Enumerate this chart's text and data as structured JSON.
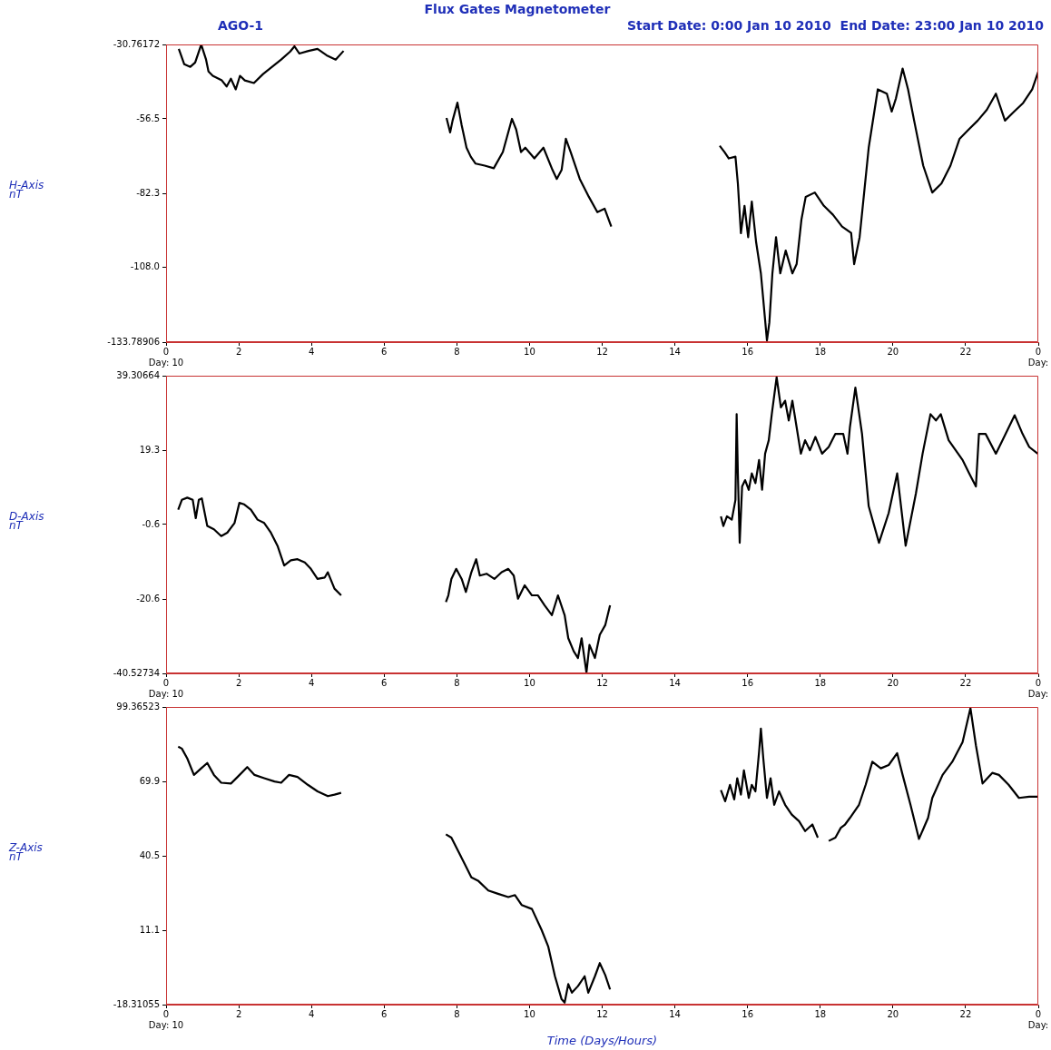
{
  "chart_data": [
    {
      "type": "line",
      "title": "Flux Gates Magnetometer",
      "subtitle": "Start Date: 0:00 Jan 10 2010  End Date: 23:00 Jan 10 2010",
      "annotations": [
        "AGO-1"
      ],
      "ylabel": "H-Axis\nnT",
      "color": "#000000",
      "marker": "none",
      "line_style": "solid",
      "grid": false,
      "legend": false,
      "xlim": [
        "2010-01-10T00:00",
        "2010-01-11T00:00"
      ],
      "xticks": [
        {
          "value": "2010-01-10T00:00",
          "label": "0\nDay: 10"
        },
        {
          "value": "2010-01-10T02:00",
          "label": "2"
        },
        {
          "value": "2010-01-10T04:00",
          "label": "4"
        },
        {
          "value": "2010-01-10T06:00",
          "label": "6"
        },
        {
          "value": "2010-01-10T08:00",
          "label": "8"
        },
        {
          "value": "2010-01-10T10:00",
          "label": "10"
        },
        {
          "value": "2010-01-10T12:00",
          "label": "12"
        },
        {
          "value": "2010-01-10T14:00",
          "label": "14"
        },
        {
          "value": "2010-01-10T16:00",
          "label": "16"
        },
        {
          "value": "2010-01-10T18:00",
          "label": "18"
        },
        {
          "value": "2010-01-10T20:00",
          "label": "20"
        },
        {
          "value": "2010-01-10T22:00",
          "label": "22"
        },
        {
          "value": "2010-01-11T00:00",
          "label": "0\nDay:"
        }
      ],
      "ylim": [
        -133.78906,
        -30.76172
      ],
      "yticks": [
        -133.78906,
        {
          "value": -108,
          "label": "-108.0"
        },
        -82.3,
        -56.5,
        -30.76172
      ],
      "x": [
        "2010-01-10T00:21",
        "2010-01-10T00:30",
        "2010-01-10T00:40",
        "2010-01-10T00:48",
        "2010-01-10T00:58",
        "2010-01-10T01:06",
        "2010-01-10T01:10",
        "2010-01-10T01:17",
        "2010-01-10T01:32",
        "2010-01-10T01:40",
        "2010-01-10T01:47",
        "2010-01-10T01:55",
        "2010-01-10T02:02",
        "2010-01-10T02:10",
        "2010-01-10T02:25",
        "2010-01-10T02:40",
        "2010-01-10T02:55",
        "2010-01-10T03:10",
        "2010-01-10T03:25",
        "2010-01-10T03:32",
        "2010-01-10T03:40",
        "2010-01-10T03:55",
        "2010-01-10T04:10",
        "2010-01-10T04:25",
        "2010-01-10T04:40",
        "2010-01-10T04:53",
        "2010-01-10T06:18",
        "2010-01-10T07:43",
        "2010-01-10T07:49",
        "2010-01-10T07:53",
        "2010-01-10T08:01",
        "2010-01-10T08:08",
        "2010-01-10T08:16",
        "2010-01-10T08:23",
        "2010-01-10T08:31",
        "2010-01-10T08:46",
        "2010-01-10T09:01",
        "2010-01-10T09:16",
        "2010-01-10T09:31",
        "2010-01-10T09:38",
        "2010-01-10T09:46",
        "2010-01-10T09:53",
        "2010-01-10T10:08",
        "2010-01-10T10:23",
        "2010-01-10T10:38",
        "2010-01-10T10:45",
        "2010-01-10T10:53",
        "2010-01-10T11:00",
        "2010-01-10T11:08",
        "2010-01-10T11:23",
        "2010-01-10T11:38",
        "2010-01-10T11:52",
        "2010-01-10T12:04",
        "2010-01-10T12:15",
        "2010-01-10T13:42",
        "2010-01-10T15:14",
        "2010-01-10T15:22",
        "2010-01-10T15:29",
        "2010-01-10T15:40",
        "2010-01-10T15:44",
        "2010-01-10T15:49",
        "2010-01-10T15:55",
        "2010-01-10T16:01",
        "2010-01-10T16:07",
        "2010-01-10T16:14",
        "2010-01-10T16:22",
        "2010-01-10T16:26",
        "2010-01-10T16:32",
        "2010-01-10T16:36",
        "2010-01-10T16:41",
        "2010-01-10T16:47",
        "2010-01-10T16:54",
        "2010-01-10T17:03",
        "2010-01-10T17:14",
        "2010-01-10T17:21",
        "2010-01-10T17:29",
        "2010-01-10T17:36",
        "2010-01-10T17:51",
        "2010-01-10T18:06",
        "2010-01-10T18:21",
        "2010-01-10T18:36",
        "2010-01-10T18:51",
        "2010-01-10T18:56",
        "2010-01-10T19:05",
        "2010-01-10T19:20",
        "2010-01-10T19:35",
        "2010-01-10T19:50",
        "2010-01-10T19:58",
        "2010-01-10T20:05",
        "2010-01-10T20:16",
        "2010-01-10T20:25",
        "2010-01-10T20:35",
        "2010-01-10T20:50",
        "2010-01-10T21:05",
        "2010-01-10T21:20",
        "2010-01-10T21:35",
        "2010-01-10T21:50",
        "2010-01-10T22:05",
        "2010-01-10T22:20",
        "2010-01-10T22:35",
        "2010-01-10T22:50",
        "2010-01-10T23:05",
        "2010-01-10T23:20",
        "2010-01-10T23:35",
        "2010-01-10T23:50",
        "2010-01-11T00:00"
      ],
      "values": [
        -32.3,
        -37.6,
        -38.5,
        -37.0,
        -30.8,
        -36.0,
        -40.1,
        -41.6,
        -43.2,
        -45.3,
        -42.6,
        -46.3,
        -41.6,
        -43.2,
        -44.1,
        -41.0,
        -38.5,
        -36.0,
        -33.2,
        -31.4,
        -33.9,
        -33.0,
        -32.3,
        -34.5,
        -36.0,
        -33.0,
        null,
        -56.2,
        -61.2,
        -57.1,
        -50.9,
        -58.7,
        -66.5,
        -69.6,
        -72.0,
        -72.7,
        -73.6,
        -68.0,
        -56.5,
        -60.2,
        -68.0,
        -66.5,
        -70.2,
        -66.5,
        -74.2,
        -77.3,
        -74.2,
        -63.4,
        -68.0,
        -77.3,
        -83.5,
        -88.8,
        -87.6,
        -93.8,
        null,
        -65.8,
        -68.0,
        -70.2,
        -69.6,
        -78.9,
        -96.1,
        -86.6,
        -97.5,
        -85.1,
        -99.0,
        -110.0,
        -119.2,
        -133.2,
        -127.0,
        -110.0,
        -97.5,
        -110.0,
        -102.1,
        -110.0,
        -106.8,
        -91.3,
        -83.5,
        -82.0,
        -86.6,
        -89.7,
        -93.8,
        -96.0,
        -106.8,
        -97.5,
        -66.5,
        -46.3,
        -47.8,
        -54.0,
        -49.4,
        -39.1,
        -46.3,
        -57.1,
        -72.7,
        -82.0,
        -78.9,
        -72.7,
        -63.4,
        -60.2,
        -57.1,
        -53.4,
        -47.8,
        -57.1,
        -54.0,
        -51.0,
        -46.3,
        -40.1
      ]
    },
    {
      "type": "line",
      "ylabel": "D-Axis\nnT",
      "color": "#000000",
      "marker": "none",
      "line_style": "solid",
      "grid": false,
      "legend": false,
      "xlim": [
        "2010-01-10T00:00",
        "2010-01-11T00:00"
      ],
      "xticks": [
        {
          "value": "2010-01-10T00:00",
          "label": "0\nDay: 10"
        },
        {
          "value": "2010-01-10T02:00",
          "label": "2"
        },
        {
          "value": "2010-01-10T04:00",
          "label": "4"
        },
        {
          "value": "2010-01-10T06:00",
          "label": "6"
        },
        {
          "value": "2010-01-10T08:00",
          "label": "8"
        },
        {
          "value": "2010-01-10T10:00",
          "label": "10"
        },
        {
          "value": "2010-01-10T12:00",
          "label": "12"
        },
        {
          "value": "2010-01-10T14:00",
          "label": "14"
        },
        {
          "value": "2010-01-10T16:00",
          "label": "16"
        },
        {
          "value": "2010-01-10T18:00",
          "label": "18"
        },
        {
          "value": "2010-01-10T20:00",
          "label": "20"
        },
        {
          "value": "2010-01-10T22:00",
          "label": "22"
        },
        {
          "value": "2010-01-11T00:00",
          "label": "0\nDay:"
        }
      ],
      "ylim": [
        -40.52734,
        39.30664
      ],
      "yticks": [
        -40.52734,
        -20.6,
        -0.6,
        19.3,
        39.30664
      ],
      "x": [
        "2010-01-10T00:20",
        "2010-01-10T00:26",
        "2010-01-10T00:35",
        "2010-01-10T00:44",
        "2010-01-10T00:49",
        "2010-01-10T00:54",
        "2010-01-10T00:59",
        "2010-01-10T01:08",
        "2010-01-10T01:19",
        "2010-01-10T01:31",
        "2010-01-10T01:41",
        "2010-01-10T01:53",
        "2010-01-10T02:01",
        "2010-01-10T02:09",
        "2010-01-10T02:20",
        "2010-01-10T02:31",
        "2010-01-10T02:42",
        "2010-01-10T02:53",
        "2010-01-10T03:04",
        "2010-01-10T03:15",
        "2010-01-10T03:26",
        "2010-01-10T03:37",
        "2010-01-10T03:49",
        "2010-01-10T03:59",
        "2010-01-10T04:10",
        "2010-01-10T04:22",
        "2010-01-10T04:27",
        "2010-01-10T04:38",
        "2010-01-10T04:49",
        "2010-01-10T06:18",
        "2010-01-10T07:42",
        "2010-01-10T07:46",
        "2010-01-10T07:51",
        "2010-01-10T07:59",
        "2010-01-10T08:08",
        "2010-01-10T08:15",
        "2010-01-10T08:24",
        "2010-01-10T08:32",
        "2010-01-10T08:38",
        "2010-01-10T08:49",
        "2010-01-10T09:02",
        "2010-01-10T09:14",
        "2010-01-10T09:25",
        "2010-01-10T09:34",
        "2010-01-10T09:41",
        "2010-01-10T09:52",
        "2010-01-10T10:04",
        "2010-01-10T10:14",
        "2010-01-10T10:25",
        "2010-01-10T10:37",
        "2010-01-10T10:47",
        "2010-01-10T10:58",
        "2010-01-10T11:04",
        "2010-01-10T11:13",
        "2010-01-10T11:20",
        "2010-01-10T11:26",
        "2010-01-10T11:34",
        "2010-01-10T11:39",
        "2010-01-10T11:48",
        "2010-01-10T11:56",
        "2010-01-10T12:05",
        "2010-01-10T12:13",
        "2010-01-10T13:42",
        "2010-01-10T15:16",
        "2010-01-10T15:20",
        "2010-01-10T15:26",
        "2010-01-10T15:34",
        "2010-01-10T15:40",
        "2010-01-10T15:42",
        "2010-01-10T15:44",
        "2010-01-10T15:47",
        "2010-01-10T15:51",
        "2010-01-10T15:56",
        "2010-01-10T16:02",
        "2010-01-10T16:07",
        "2010-01-10T16:13",
        "2010-01-10T16:19",
        "2010-01-10T16:24",
        "2010-01-10T16:29",
        "2010-01-10T16:35",
        "2010-01-10T16:40",
        "2010-01-10T16:48",
        "2010-01-10T16:55",
        "2010-01-10T17:02",
        "2010-01-10T17:08",
        "2010-01-10T17:14",
        "2010-01-10T17:21",
        "2010-01-10T17:28",
        "2010-01-10T17:35",
        "2010-01-10T17:43",
        "2010-01-10T17:52",
        "2010-01-10T18:03",
        "2010-01-10T18:14",
        "2010-01-10T18:25",
        "2010-01-10T18:38",
        "2010-01-10T18:45",
        "2010-01-10T18:49",
        "2010-01-10T18:58",
        "2010-01-10T19:09",
        "2010-01-10T19:20",
        "2010-01-10T19:37",
        "2010-01-10T19:53",
        "2010-01-10T20:07",
        "2010-01-10T20:21",
        "2010-01-10T20:38",
        "2010-01-10T20:49",
        "2010-01-10T21:02",
        "2010-01-10T21:11",
        "2010-01-10T21:19",
        "2010-01-10T21:32",
        "2010-01-10T21:55",
        "2010-01-10T22:06",
        "2010-01-10T22:17",
        "2010-01-10T22:22",
        "2010-01-10T22:33",
        "2010-01-10T22:50",
        "2010-01-10T23:01",
        "2010-01-10T23:21",
        "2010-01-10T23:34",
        "2010-01-10T23:45",
        "2010-01-10T23:59"
      ],
      "values": [
        3.4,
        6.0,
        6.6,
        6.0,
        1.1,
        6.0,
        6.4,
        -1.0,
        -1.9,
        -3.7,
        -2.8,
        -0.2,
        5.2,
        4.8,
        3.4,
        0.7,
        -0.2,
        -2.8,
        -6.3,
        -11.6,
        -10.2,
        -9.9,
        -10.8,
        -12.5,
        -15.2,
        -14.8,
        -13.4,
        -17.8,
        -19.6,
        null,
        -21.4,
        -19.6,
        -15.2,
        -12.5,
        -15.2,
        -18.7,
        -13.4,
        -9.9,
        -14.3,
        -13.8,
        -15.2,
        -13.4,
        -12.5,
        -14.3,
        -20.5,
        -16.9,
        -19.6,
        -19.6,
        -22.3,
        -24.9,
        -19.6,
        -24.9,
        -31.1,
        -34.6,
        -36.4,
        -31.1,
        -40.3,
        -32.9,
        -36.4,
        -30.2,
        -27.6,
        -22.3,
        null,
        1.6,
        -1.0,
        1.6,
        0.7,
        6.0,
        29.0,
        13.1,
        -5.5,
        9.6,
        11.3,
        8.7,
        13.1,
        10.5,
        16.7,
        8.7,
        18.4,
        22.0,
        29.0,
        38.9,
        30.8,
        32.6,
        27.3,
        32.6,
        25.5,
        18.4,
        22.0,
        19.3,
        22.9,
        18.4,
        20.2,
        23.7,
        23.7,
        18.4,
        25.5,
        36.1,
        23.7,
        4.3,
        -5.5,
        2.5,
        13.1,
        -6.3,
        7.8,
        18.4,
        29.0,
        27.3,
        29.0,
        22.0,
        16.7,
        13.1,
        9.6,
        23.7,
        23.7,
        18.4,
        22.0,
        28.7,
        23.7,
        20.2,
        18.4
      ]
    },
    {
      "type": "line",
      "ylabel": "Z-Axis\nnT",
      "xlabel": "Time (Days/Hours)",
      "color": "#000000",
      "marker": "none",
      "line_style": "solid",
      "grid": false,
      "legend": false,
      "xlim": [
        "2010-01-10T00:00",
        "2010-01-11T00:00"
      ],
      "xticks": [
        {
          "value": "2010-01-10T00:00",
          "label": "0\nDay: 10"
        },
        {
          "value": "2010-01-10T02:00",
          "label": "2"
        },
        {
          "value": "2010-01-10T04:00",
          "label": "4"
        },
        {
          "value": "2010-01-10T06:00",
          "label": "6"
        },
        {
          "value": "2010-01-10T08:00",
          "label": "8"
        },
        {
          "value": "2010-01-10T10:00",
          "label": "10"
        },
        {
          "value": "2010-01-10T12:00",
          "label": "12"
        },
        {
          "value": "2010-01-10T14:00",
          "label": "14"
        },
        {
          "value": "2010-01-10T16:00",
          "label": "16"
        },
        {
          "value": "2010-01-10T18:00",
          "label": "18"
        },
        {
          "value": "2010-01-10T20:00",
          "label": "20"
        },
        {
          "value": "2010-01-10T22:00",
          "label": "22"
        },
        {
          "value": "2010-01-11T00:00",
          "label": "0\nDay:"
        }
      ],
      "ylim": [
        -18.31055,
        99.36523
      ],
      "yticks": [
        -18.31055,
        11.1,
        40.5,
        69.9,
        99.36523
      ],
      "x": [
        "2010-01-10T00:20",
        "2010-01-10T00:26",
        "2010-01-10T00:35",
        "2010-01-10T00:46",
        "2010-01-10T00:58",
        "2010-01-10T01:08",
        "2010-01-10T01:19",
        "2010-01-10T01:31",
        "2010-01-10T01:47",
        "2010-01-10T01:58",
        "2010-01-10T02:14",
        "2010-01-10T02:26",
        "2010-01-10T02:42",
        "2010-01-10T02:59",
        "2010-01-10T03:10",
        "2010-01-10T03:23",
        "2010-01-10T03:37",
        "2010-01-10T03:54",
        "2010-01-10T04:10",
        "2010-01-10T04:27",
        "2010-01-10T04:38",
        "2010-01-10T04:49",
        "2010-01-10T06:18",
        "2010-01-10T07:42",
        "2010-01-10T07:51",
        "2010-01-10T08:02",
        "2010-01-10T08:13",
        "2010-01-10T08:24",
        "2010-01-10T08:35",
        "2010-01-10T08:52",
        "2010-01-10T09:08",
        "2010-01-10T09:25",
        "2010-01-10T09:36",
        "2010-01-10T09:47",
        "2010-01-10T10:04",
        "2010-01-10T10:20",
        "2010-01-10T10:31",
        "2010-01-10T10:42",
        "2010-01-10T10:53",
        "2010-01-10T10:58",
        "2010-01-10T11:04",
        "2010-01-10T11:10",
        "2010-01-10T11:20",
        "2010-01-10T11:31",
        "2010-01-10T11:37",
        "2010-01-10T11:48",
        "2010-01-10T11:56",
        "2010-01-10T12:05",
        "2010-01-10T12:13",
        "2010-01-10T13:42",
        "2010-01-10T15:16",
        "2010-01-10T15:23",
        "2010-01-10T15:31",
        "2010-01-10T15:38",
        "2010-01-10T15:43",
        "2010-01-10T15:49",
        "2010-01-10T15:54",
        "2010-01-10T16:02",
        "2010-01-10T16:07",
        "2010-01-10T16:13",
        "2010-01-10T16:19",
        "2010-01-10T16:22",
        "2010-01-10T16:26",
        "2010-01-10T16:32",
        "2010-01-10T16:38",
        "2010-01-10T16:44",
        "2010-01-10T16:52",
        "2010-01-10T17:02",
        "2010-01-10T17:13",
        "2010-01-10T17:25",
        "2010-01-10T17:35",
        "2010-01-10T17:47",
        "2010-01-10T17:56",
        "2010-01-10T18:06",
        "2010-01-10T18:14",
        "2010-01-10T18:25",
        "2010-01-10T18:34",
        "2010-01-10T18:41",
        "2010-01-10T18:49",
        "2010-01-10T19:04",
        "2010-01-10T19:15",
        "2010-01-10T19:26",
        "2010-01-10T19:40",
        "2010-01-10T19:53",
        "2010-01-10T20:07",
        "2010-01-10T20:16",
        "2010-01-10T20:29",
        "2010-01-10T20:43",
        "2010-01-10T20:58",
        "2010-01-10T21:05",
        "2010-01-10T21:22",
        "2010-01-10T21:38",
        "2010-01-10T21:55",
        "2010-01-10T22:08",
        "2010-01-10T22:17",
        "2010-01-10T22:28",
        "2010-01-10T22:44",
        "2010-01-10T22:55",
        "2010-01-10T23:11",
        "2010-01-10T23:28",
        "2010-01-10T23:45",
        "2010-01-10T23:59"
      ],
      "values": [
        83.7,
        82.9,
        79.0,
        72.5,
        75.1,
        77.2,
        72.5,
        69.4,
        69.1,
        71.7,
        75.6,
        72.5,
        71.2,
        69.9,
        69.4,
        72.5,
        71.7,
        68.6,
        66.0,
        64.1,
        64.7,
        65.4,
        null,
        49.0,
        47.7,
        42.5,
        37.3,
        32.0,
        30.7,
        26.8,
        25.5,
        24.2,
        25.0,
        21.1,
        19.5,
        11.2,
        4.6,
        -7.1,
        -16.2,
        -17.5,
        -10.2,
        -13.6,
        -11.0,
        -7.1,
        -13.6,
        -7.1,
        -1.9,
        -6.6,
        -12.3,
        null,
        66.5,
        62.1,
        68.6,
        62.8,
        71.2,
        64.7,
        74.3,
        63.4,
        68.6,
        66.0,
        81.6,
        90.8,
        79.0,
        63.4,
        71.2,
        60.7,
        66.0,
        60.7,
        56.8,
        54.2,
        50.3,
        52.9,
        47.7,
        null,
        46.4,
        47.7,
        51.6,
        52.9,
        55.5,
        60.7,
        68.6,
        77.7,
        75.1,
        76.4,
        81.1,
        72.5,
        60.7,
        47.2,
        55.5,
        63.4,
        72.5,
        77.7,
        85.5,
        98.9,
        84.2,
        69.1,
        73.3,
        72.5,
        68.6,
        63.4,
        63.9,
        63.9
      ]
    }
  ]
}
